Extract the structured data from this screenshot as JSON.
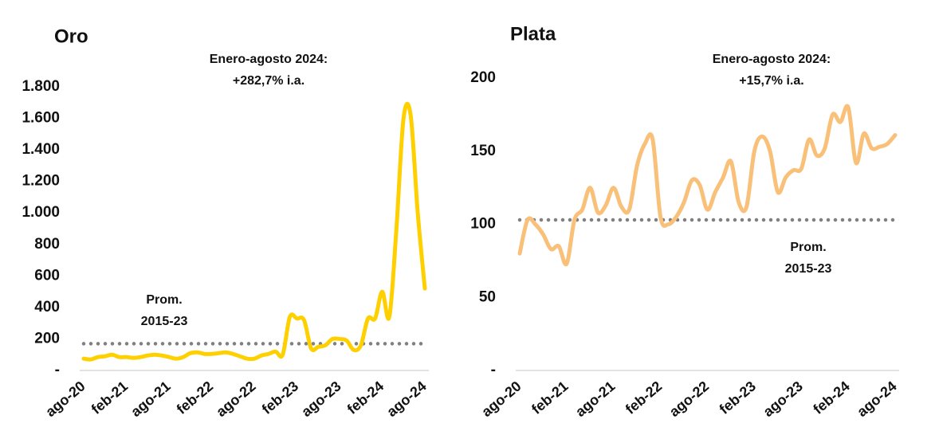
{
  "chart_data": [
    {
      "type": "line",
      "title": "Oro",
      "annotation": [
        "Enero-agosto 2024:",
        "+282,7% i.a."
      ],
      "reference": {
        "label": [
          "Prom.",
          "2015-23"
        ],
        "value": 170,
        "color": "#808080"
      },
      "categories": [
        "ago-20",
        null,
        null,
        null,
        null,
        null,
        "feb-21",
        null,
        null,
        null,
        null,
        null,
        "ago-21",
        null,
        null,
        null,
        null,
        null,
        "feb-22",
        null,
        null,
        null,
        null,
        null,
        "ago-22",
        null,
        null,
        null,
        null,
        null,
        "feb-23",
        null,
        null,
        null,
        null,
        null,
        "ago-23",
        null,
        null,
        null,
        null,
        null,
        "feb-24",
        null,
        null,
        null,
        null,
        null,
        "ago-24"
      ],
      "series": [
        {
          "name": "Oro",
          "color": "#FFD000",
          "values": [
            75,
            70,
            85,
            90,
            100,
            85,
            85,
            80,
            85,
            95,
            100,
            95,
            85,
            75,
            85,
            110,
            115,
            105,
            105,
            110,
            115,
            105,
            90,
            75,
            75,
            95,
            105,
            120,
            100,
            340,
            330,
            320,
            140,
            150,
            160,
            200,
            200,
            190,
            130,
            160,
            330,
            330,
            500,
            340,
            900,
            1600,
            1620,
            1000,
            520
          ]
        }
      ],
      "ylim": [
        0,
        1800
      ],
      "yticks": [
        {
          "value": 0,
          "label": "-"
        },
        200,
        400,
        600,
        800,
        {
          "value": 1000,
          "label": "1.000"
        },
        {
          "value": 1200,
          "label": "1.200"
        },
        {
          "value": 1400,
          "label": "1.400"
        },
        {
          "value": 1600,
          "label": "1.600"
        },
        {
          "value": 1800,
          "label": "1.800"
        }
      ]
    },
    {
      "type": "line",
      "title": "Plata",
      "annotation": [
        "Enero-agosto 2024:",
        "+15,7% i.a."
      ],
      "reference": {
        "label": [
          "Prom.",
          "2015-23"
        ],
        "value": 103,
        "color": "#808080"
      },
      "categories": [
        "ago-20",
        null,
        null,
        null,
        null,
        null,
        "feb-21",
        null,
        null,
        null,
        null,
        null,
        "ago-21",
        null,
        null,
        null,
        null,
        null,
        "feb-22",
        null,
        null,
        null,
        null,
        null,
        "ago-22",
        null,
        null,
        null,
        null,
        null,
        "feb-23",
        null,
        null,
        null,
        null,
        null,
        "ago-23",
        null,
        null,
        null,
        null,
        null,
        "feb-24",
        null,
        null,
        null,
        null,
        null,
        "ago-24"
      ],
      "series": [
        {
          "name": "Plata",
          "color": "#F9C07A",
          "values": [
            80,
            103,
            100,
            93,
            83,
            85,
            73,
            103,
            110,
            125,
            108,
            113,
            125,
            112,
            110,
            140,
            155,
            158,
            105,
            100,
            105,
            115,
            130,
            127,
            110,
            122,
            132,
            143,
            115,
            112,
            150,
            160,
            150,
            122,
            132,
            137,
            138,
            158,
            147,
            152,
            175,
            170,
            180,
            142,
            162,
            152,
            153,
            155,
            161
          ]
        }
      ],
      "ylim": [
        0,
        200
      ],
      "yticks": [
        {
          "value": 0,
          "label": "-"
        },
        50,
        100,
        150,
        200
      ]
    }
  ]
}
